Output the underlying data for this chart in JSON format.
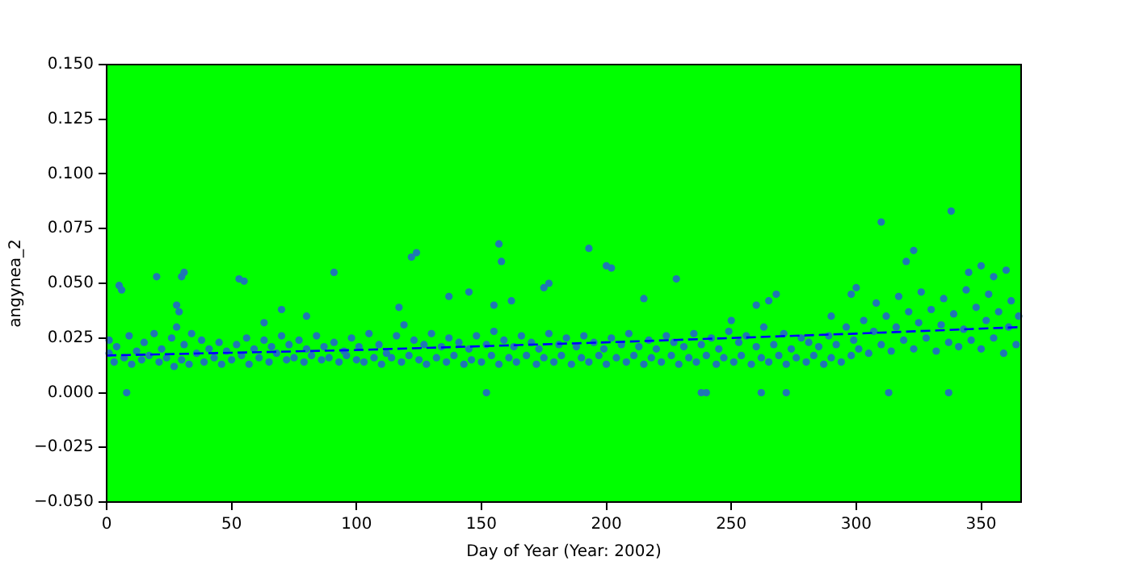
{
  "chart_data": {
    "type": "scatter",
    "xlabel": "Day of Year (Year: 2002)",
    "ylabel": "angynea_2",
    "xlim": [
      0,
      366
    ],
    "xticks": [
      0,
      50,
      100,
      150,
      200,
      250,
      300,
      350
    ],
    "ylim": [
      -0.05,
      0.15
    ],
    "yticks": [
      {
        "value": -0.05,
        "label": "−0.050"
      },
      {
        "value": -0.025,
        "label": "−0.025"
      },
      {
        "value": 0,
        "label": "0.000"
      },
      {
        "value": 0.025,
        "label": "0.025"
      },
      {
        "value": 0.05,
        "label": "0.050"
      },
      {
        "value": 0.075,
        "label": "0.075"
      },
      {
        "value": 0.1,
        "label": "0.100"
      },
      {
        "value": 0.125,
        "label": "0.125"
      },
      {
        "value": 0.15,
        "label": "0.150"
      }
    ],
    "grid": false,
    "legend": false,
    "series": [
      {
        "color": "#1f77b4",
        "marker": "circle",
        "x": [
          1,
          1,
          3,
          4,
          7,
          9,
          10,
          12,
          14,
          15,
          17,
          19,
          21,
          22,
          24,
          26,
          27,
          28,
          30,
          31,
          33,
          34,
          36,
          38,
          39,
          41,
          43,
          45,
          46,
          48,
          50,
          52,
          54,
          56,
          57,
          59,
          61,
          63,
          65,
          66,
          68,
          70,
          72,
          73,
          75,
          77,
          79,
          80,
          82,
          84,
          86,
          87,
          89,
          91,
          93,
          95,
          96,
          98,
          100,
          101,
          103,
          105,
          107,
          109,
          110,
          112,
          114,
          116,
          118,
          119,
          121,
          123,
          125,
          127,
          128,
          130,
          132,
          134,
          136,
          137,
          139,
          141,
          143,
          145,
          146,
          148,
          150,
          152,
          154,
          155,
          157,
          159,
          161,
          163,
          164,
          166,
          168,
          170,
          172,
          173,
          175,
          177,
          179,
          181,
          182,
          184,
          186,
          188,
          190,
          191,
          193,
          195,
          197,
          199,
          200,
          202,
          204,
          206,
          208,
          209,
          211,
          213,
          215,
          217,
          218,
          220,
          222,
          224,
          226,
          227,
          229,
          231,
          233,
          235,
          236,
          238,
          240,
          242,
          244,
          245,
          247,
          249,
          251,
          253,
          254,
          256,
          258,
          260,
          262,
          263,
          265,
          267,
          269,
          271,
          272,
          274,
          276,
          278,
          280,
          281,
          283,
          285,
          287,
          289,
          290,
          292,
          294,
          296,
          298,
          299,
          301,
          303,
          305,
          307,
          308,
          310,
          312,
          314,
          316,
          317,
          319,
          321,
          323,
          325,
          326,
          328,
          330,
          332,
          334,
          335,
          337,
          339,
          341,
          343,
          344,
          346,
          348,
          350,
          352,
          353,
          355,
          357,
          359,
          361,
          362,
          364,
          365,
          5,
          6,
          8,
          20,
          28,
          29,
          30,
          31,
          53,
          55,
          63,
          70,
          80,
          91,
          117,
          122,
          124,
          137,
          145,
          152,
          155,
          157,
          158,
          162,
          175,
          177,
          193,
          200,
          202,
          215,
          228,
          238,
          240,
          250,
          260,
          262,
          265,
          268,
          272,
          290,
          298,
          300,
          310,
          313,
          320,
          323,
          337,
          338,
          345,
          350,
          355,
          360
        ],
        "values": [
          0.018,
          0.024,
          0.014,
          0.021,
          0.016,
          0.026,
          0.013,
          0.019,
          0.015,
          0.023,
          0.017,
          0.027,
          0.014,
          0.02,
          0.016,
          0.025,
          0.012,
          0.03,
          0.015,
          0.022,
          0.013,
          0.027,
          0.018,
          0.024,
          0.014,
          0.02,
          0.016,
          0.023,
          0.013,
          0.019,
          0.015,
          0.022,
          0.017,
          0.025,
          0.013,
          0.02,
          0.016,
          0.024,
          0.014,
          0.021,
          0.018,
          0.026,
          0.015,
          0.022,
          0.016,
          0.024,
          0.014,
          0.02,
          0.017,
          0.026,
          0.015,
          0.021,
          0.016,
          0.023,
          0.014,
          0.019,
          0.017,
          0.025,
          0.015,
          0.021,
          0.014,
          0.027,
          0.016,
          0.022,
          0.013,
          0.018,
          0.016,
          0.026,
          0.014,
          0.031,
          0.017,
          0.024,
          0.015,
          0.022,
          0.013,
          0.027,
          0.016,
          0.021,
          0.014,
          0.025,
          0.017,
          0.023,
          0.013,
          0.02,
          0.015,
          0.026,
          0.014,
          0.022,
          0.017,
          0.028,
          0.013,
          0.024,
          0.016,
          0.021,
          0.014,
          0.026,
          0.017,
          0.023,
          0.013,
          0.02,
          0.016,
          0.027,
          0.014,
          0.022,
          0.017,
          0.025,
          0.013,
          0.021,
          0.016,
          0.026,
          0.014,
          0.023,
          0.017,
          0.02,
          0.013,
          0.025,
          0.016,
          0.022,
          0.014,
          0.027,
          0.017,
          0.021,
          0.013,
          0.024,
          0.016,
          0.02,
          0.014,
          0.026,
          0.017,
          0.023,
          0.013,
          0.021,
          0.016,
          0.027,
          0.014,
          0.022,
          0.017,
          0.025,
          0.013,
          0.02,
          0.016,
          0.028,
          0.014,
          0.023,
          0.017,
          0.026,
          0.013,
          0.021,
          0.016,
          0.03,
          0.014,
          0.022,
          0.017,
          0.027,
          0.013,
          0.02,
          0.016,
          0.025,
          0.014,
          0.023,
          0.017,
          0.021,
          0.013,
          0.026,
          0.016,
          0.022,
          0.014,
          0.03,
          0.017,
          0.024,
          0.02,
          0.033,
          0.018,
          0.028,
          0.041,
          0.022,
          0.035,
          0.019,
          0.03,
          0.044,
          0.024,
          0.037,
          0.02,
          0.032,
          0.046,
          0.025,
          0.038,
          0.019,
          0.031,
          0.043,
          0.023,
          0.036,
          0.021,
          0.029,
          0.047,
          0.024,
          0.039,
          0.02,
          0.033,
          0.045,
          0.025,
          0.037,
          0.018,
          0.03,
          0.042,
          0.022,
          0.035,
          0.049,
          0.047,
          0.0,
          0.053,
          0.04,
          0.037,
          0.053,
          0.055,
          0.052,
          0.051,
          0.032,
          0.038,
          0.035,
          0.055,
          0.039,
          0.062,
          0.064,
          0.044,
          0.046,
          0.0,
          0.04,
          0.068,
          0.06,
          0.042,
          0.048,
          0.05,
          0.066,
          0.058,
          0.057,
          0.043,
          0.052,
          0.0,
          0.0,
          0.033,
          0.04,
          0.0,
          0.042,
          0.045,
          0.0,
          0.035,
          0.045,
          0.048,
          0.078,
          0.0,
          0.06,
          0.065,
          0.0,
          0.083,
          0.055,
          0.058,
          0.053,
          0.056
        ]
      },
      {
        "type": "line",
        "color": "#0000ff",
        "marker": "none",
        "line_style": "dashed",
        "x": [
          0,
          100,
          200,
          300,
          366
        ],
        "values": [
          0.017,
          0.0195,
          0.023,
          0.027,
          0.03
        ]
      }
    ]
  }
}
